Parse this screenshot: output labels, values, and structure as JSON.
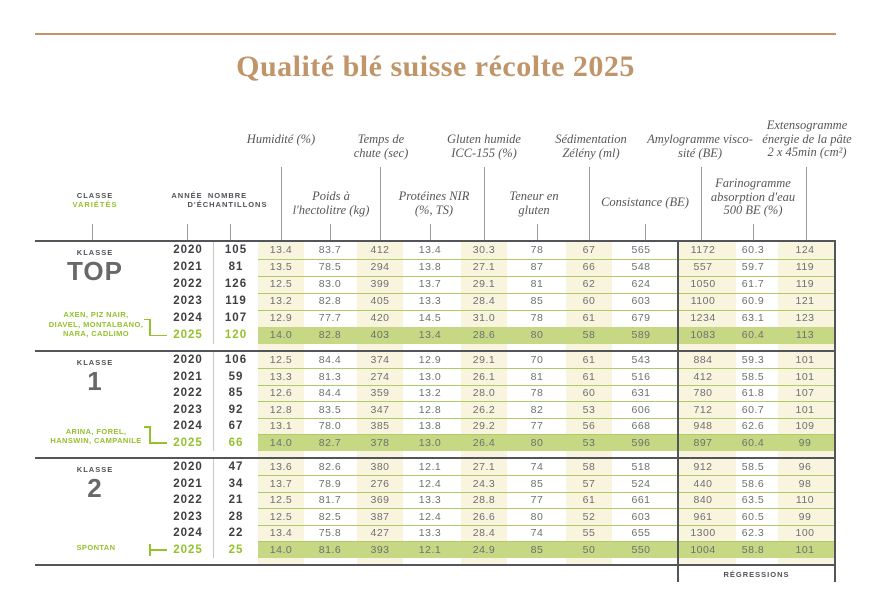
{
  "title": "Qualité blé suisse récolte 2025",
  "colors": {
    "accent_tan": "#bf9569",
    "accent_green": "#94c12c",
    "highlight_band_green": "#c6d883",
    "separator_green": "#aecb68",
    "stripe_cream": "#f9f4dd",
    "line_dark": "#54555a",
    "text_gray": "#6e6f71"
  },
  "header": {
    "classe": "CLASSE",
    "varietes": "VARIÉTÉS",
    "annee": "ANNÉE",
    "nombre_line1": "NOMBRE",
    "nombre_line2": "D'ÉCHANTILLONS",
    "columns_top": [
      {
        "id": "humidite",
        "lines": [
          "Humidité (%)"
        ]
      },
      {
        "id": "temps-chute",
        "lines": [
          "Temps de",
          "chute (sec)"
        ]
      },
      {
        "id": "gluten-humide",
        "lines": [
          "Gluten humide",
          "ICC-155 (%)"
        ]
      },
      {
        "id": "sedimentation",
        "lines": [
          "Sédimentation",
          "Zélény (ml)"
        ]
      },
      {
        "id": "amylogramme",
        "lines": [
          "Amylogramme visco-",
          "sité (BE)"
        ]
      },
      {
        "id": "extensogramme",
        "lines": [
          "Extensogramme",
          "énergie de la pâte",
          "2 x 45min (cm²)"
        ]
      }
    ],
    "columns_mid": [
      {
        "id": "poids-hectolitre",
        "lines": [
          "Poids à",
          "l'hectolitre (kg)"
        ]
      },
      {
        "id": "proteines-nir",
        "lines": [
          "Protéines NIR",
          "(%, TS)"
        ]
      },
      {
        "id": "teneur-gluten",
        "lines": [
          "Teneur en",
          "gluten"
        ]
      },
      {
        "id": "consistance",
        "lines": [
          "Consistance (BE)"
        ]
      },
      {
        "id": "farinogramme",
        "lines": [
          "Farinogramme",
          "absorption d'eau",
          "500 BE (%)"
        ]
      }
    ]
  },
  "regressions_label": "RÉGRESSIONS",
  "blocks": [
    {
      "klasse_label": "KLASSE",
      "name": "TOP",
      "varieties_lines": [
        "AXEN, PIZ NAIR,",
        "DIAVEL, MONTALBANO,",
        "NARA, CADLIMO"
      ],
      "rows": [
        {
          "year": "2020",
          "n": "105",
          "values": [
            "13.4",
            "83.7",
            "412",
            "13.4",
            "30.3",
            "78",
            "67",
            "565",
            "1172",
            "60.3",
            "124"
          ],
          "highlight": false
        },
        {
          "year": "2021",
          "n": "81",
          "values": [
            "13.5",
            "78.5",
            "294",
            "13.8",
            "27.1",
            "87",
            "66",
            "548",
            "557",
            "59.7",
            "119"
          ],
          "highlight": false
        },
        {
          "year": "2022",
          "n": "126",
          "values": [
            "12.5",
            "83.0",
            "399",
            "13.7",
            "29.1",
            "81",
            "62",
            "624",
            "1050",
            "61.7",
            "119"
          ],
          "highlight": false
        },
        {
          "year": "2023",
          "n": "119",
          "values": [
            "13.2",
            "82.8",
            "405",
            "13.3",
            "28.4",
            "85",
            "60",
            "603",
            "1100",
            "60.9",
            "121"
          ],
          "highlight": false
        },
        {
          "year": "2024",
          "n": "107",
          "values": [
            "12.9",
            "77.7",
            "420",
            "14.5",
            "31.0",
            "78",
            "61",
            "679",
            "1234",
            "63.1",
            "123"
          ],
          "highlight": false
        },
        {
          "year": "2025",
          "n": "120",
          "values": [
            "14.0",
            "82.8",
            "403",
            "13.4",
            "28.6",
            "80",
            "58",
            "589",
            "1083",
            "60.4",
            "113"
          ],
          "highlight": true
        }
      ]
    },
    {
      "klasse_label": "KLASSE",
      "name": "1",
      "varieties_lines": [
        "ARINA, FOREL,",
        "HANSWIN, CAMPANILE"
      ],
      "rows": [
        {
          "year": "2020",
          "n": "106",
          "values": [
            "12.5",
            "84.4",
            "374",
            "12.9",
            "29.1",
            "70",
            "61",
            "543",
            "884",
            "59.3",
            "101"
          ],
          "highlight": false
        },
        {
          "year": "2021",
          "n": "59",
          "values": [
            "13.3",
            "81.3",
            "274",
            "13.0",
            "26.1",
            "81",
            "61",
            "516",
            "412",
            "58.5",
            "101"
          ],
          "highlight": false
        },
        {
          "year": "2022",
          "n": "85",
          "values": [
            "12.6",
            "84.4",
            "359",
            "13.2",
            "28.0",
            "78",
            "60",
            "631",
            "780",
            "61.8",
            "107"
          ],
          "highlight": false
        },
        {
          "year": "2023",
          "n": "92",
          "values": [
            "12.8",
            "83.5",
            "347",
            "12.8",
            "26.2",
            "82",
            "53",
            "606",
            "712",
            "60.7",
            "101"
          ],
          "highlight": false
        },
        {
          "year": "2024",
          "n": "67",
          "values": [
            "13.1",
            "78.0",
            "385",
            "13.8",
            "29.2",
            "77",
            "56",
            "668",
            "948",
            "62.6",
            "109"
          ],
          "highlight": false
        },
        {
          "year": "2025",
          "n": "66",
          "values": [
            "14.0",
            "82.7",
            "378",
            "13.0",
            "26.4",
            "80",
            "53",
            "596",
            "897",
            "60.4",
            "99"
          ],
          "highlight": true
        }
      ]
    },
    {
      "klasse_label": "KLASSE",
      "name": "2",
      "varieties_lines": [
        "SPONTAN"
      ],
      "rows": [
        {
          "year": "2020",
          "n": "47",
          "values": [
            "13.6",
            "82.6",
            "380",
            "12.1",
            "27.1",
            "74",
            "58",
            "518",
            "912",
            "58.5",
            "96"
          ],
          "highlight": false
        },
        {
          "year": "2021",
          "n": "34",
          "values": [
            "13.7",
            "78.9",
            "276",
            "12.4",
            "24.3",
            "85",
            "57",
            "524",
            "440",
            "58.6",
            "98"
          ],
          "highlight": false
        },
        {
          "year": "2022",
          "n": "21",
          "values": [
            "12.5",
            "81.7",
            "369",
            "13.3",
            "28.8",
            "77",
            "61",
            "661",
            "840",
            "63.5",
            "110"
          ],
          "highlight": false
        },
        {
          "year": "2023",
          "n": "28",
          "values": [
            "12.5",
            "82.5",
            "387",
            "12.4",
            "26.6",
            "80",
            "52",
            "603",
            "961",
            "60.5",
            "99"
          ],
          "highlight": false
        },
        {
          "year": "2024",
          "n": "22",
          "values": [
            "13.4",
            "75.8",
            "427",
            "13.3",
            "28.4",
            "74",
            "55",
            "655",
            "1300",
            "62.3",
            "100"
          ],
          "highlight": false
        },
        {
          "year": "2025",
          "n": "25",
          "values": [
            "14.0",
            "81.6",
            "393",
            "12.1",
            "24.9",
            "85",
            "50",
            "550",
            "1004",
            "58.8",
            "101"
          ],
          "highlight": true
        }
      ]
    }
  ]
}
